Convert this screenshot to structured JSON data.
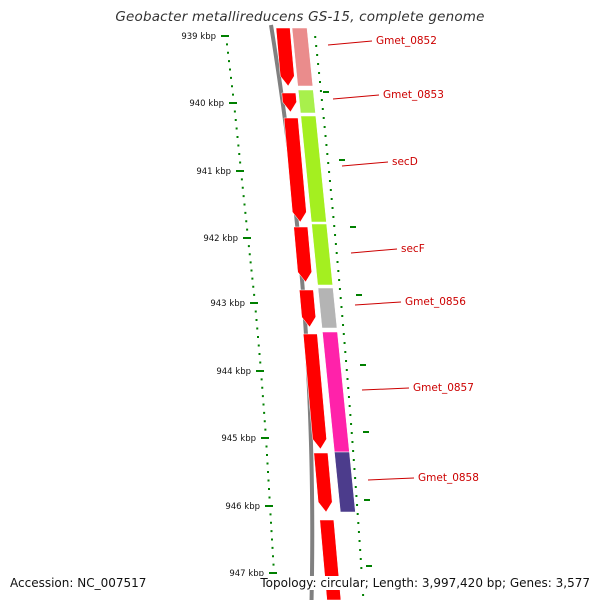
{
  "title": "Geobacter metallireducens GS-15, complete genome",
  "footer": {
    "accession": "Accession: NC_007517",
    "summary": "Topology: circular; Length: 3,997,420 bp; Genes: 3,577"
  },
  "ticks": [
    "939 kbp",
    "940 kbp",
    "941 kbp",
    "942 kbp",
    "943 kbp",
    "944 kbp",
    "945 kbp",
    "946 kbp",
    "947 kbp"
  ],
  "genes": [
    {
      "label": "Gmet_0852",
      "color": "#ea8c8c"
    },
    {
      "label": "Gmet_0853",
      "color": "#a8f04c"
    },
    {
      "label": "secD",
      "color": "#a4ef20"
    },
    {
      "label": "secF",
      "color": "#a4ef20"
    },
    {
      "label": "Gmet_0856",
      "color": "#b4b4b4"
    },
    {
      "label": "Gmet_0857",
      "color": "#ff22aa"
    },
    {
      "label": "Gmet_0858",
      "color": "#4c3c8c"
    }
  ],
  "colors": {
    "cds": "#ff0000",
    "tick": "#008000",
    "backbone": "#808080",
    "label": "#cc0000"
  }
}
